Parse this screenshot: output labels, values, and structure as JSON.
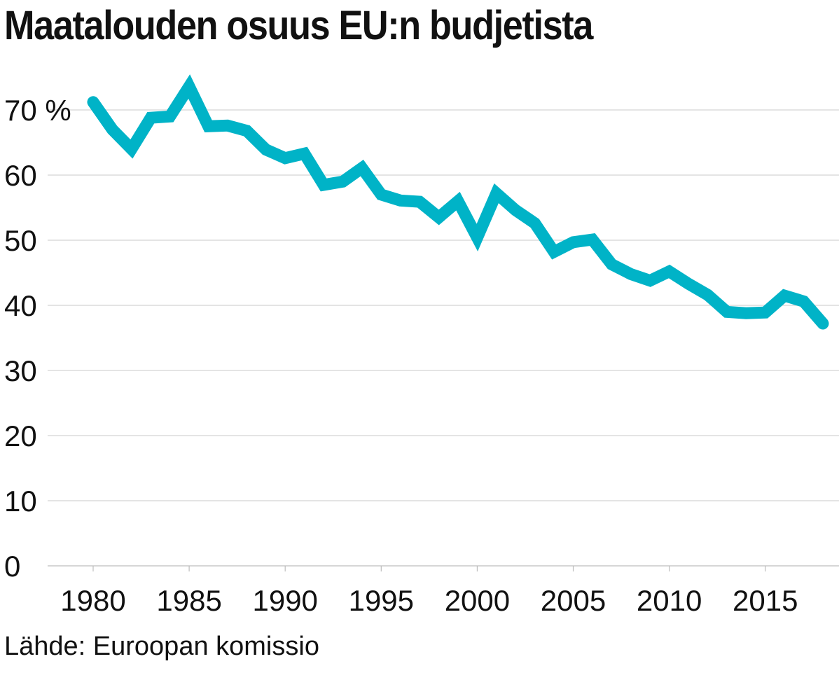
{
  "title": "Maatalouden osuus EU:n budjetista",
  "source": "Lähde: Euroopan komissio",
  "colors": {
    "line": "#00B3C7",
    "grid": "#d4d4d4",
    "text": "#111111"
  },
  "chart_data": {
    "type": "line",
    "title": "Maatalouden osuus EU:n budjetista",
    "xlabel": "",
    "ylabel": "",
    "unit": "%",
    "xlim": [
      1977.5,
      1979.0
    ],
    "ylim": [
      0,
      70
    ],
    "x_ticks": [
      1980,
      1985,
      1990,
      1995,
      2000,
      2005,
      2010,
      2015
    ],
    "y_ticks": [
      0,
      10,
      20,
      30,
      40,
      50,
      60,
      70
    ],
    "y_tick_labels": [
      "0",
      "10",
      "20",
      "30",
      "40",
      "50",
      "60",
      "70 %"
    ],
    "grid": true,
    "series": [
      {
        "color": "#00B3C7",
        "x": [
          1980,
          1981,
          1982,
          1983,
          1984,
          1985,
          1986,
          1987,
          1988,
          1989,
          1990,
          1991,
          1992,
          1993,
          1994,
          1995,
          1996,
          1997,
          1998,
          1999,
          2000,
          2001,
          2002,
          2003,
          2004,
          2005,
          2006,
          2007,
          2008,
          2009,
          2010,
          2011,
          2012,
          2013,
          2014,
          2015,
          2016,
          2017,
          2018
        ],
        "values": [
          71.2,
          67.0,
          64.0,
          68.8,
          69.0,
          73.6,
          67.5,
          67.6,
          66.8,
          63.9,
          62.6,
          63.3,
          58.5,
          59.0,
          61.1,
          57.0,
          56.1,
          55.9,
          53.5,
          56.0,
          50.4,
          57.2,
          54.6,
          52.6,
          48.2,
          49.7,
          50.1,
          46.3,
          44.8,
          43.8,
          45.2,
          43.3,
          41.6,
          39.0,
          38.8,
          38.9,
          41.5,
          40.6,
          37.2
        ]
      }
    ]
  }
}
